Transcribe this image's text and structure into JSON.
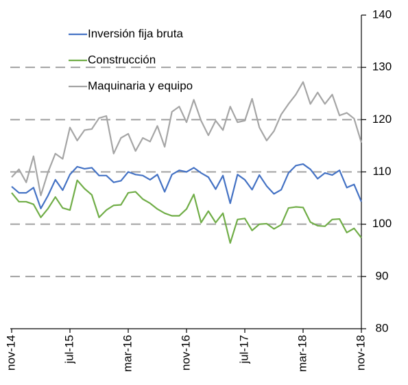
{
  "chart_data": {
    "type": "line",
    "categories": [
      "nov-14",
      null,
      null,
      null,
      null,
      null,
      null,
      null,
      "jul-15",
      null,
      null,
      null,
      null,
      null,
      null,
      null,
      "mar-16",
      null,
      null,
      null,
      null,
      null,
      null,
      null,
      "nov-16",
      null,
      null,
      null,
      null,
      null,
      null,
      null,
      "jul-17",
      null,
      null,
      null,
      null,
      null,
      null,
      null,
      "mar-18",
      null,
      null,
      null,
      null,
      null,
      null,
      null,
      "nov-18"
    ],
    "series": [
      {
        "name": "Inversión fija bruta",
        "color": "#4472c4",
        "values": [
          107.2,
          106,
          106,
          107,
          103,
          105.5,
          108.5,
          106.5,
          109.5,
          111,
          110.6,
          110.8,
          109.3,
          109.3,
          108,
          108.3,
          110,
          109.5,
          109.3,
          108.5,
          109.5,
          106.2,
          109.5,
          110.3,
          110,
          110.8,
          109.8,
          109,
          106.7,
          109.3,
          104,
          109.5,
          108.5,
          106.6,
          109.4,
          107.3,
          105.8,
          106.6,
          109.8,
          111.2,
          111.5,
          110.5,
          108.7,
          109.8,
          109.4,
          110.3,
          107,
          107.6,
          104.3
        ]
      },
      {
        "name": "Construcción",
        "color": "#70ad47",
        "values": [
          106,
          104.3,
          104.3,
          103.8,
          101.3,
          103,
          105.2,
          103.1,
          102.7,
          108.4,
          106.8,
          105.6,
          101.3,
          102.7,
          103.6,
          103.7,
          106,
          106.2,
          104.8,
          104,
          102.9,
          102.1,
          101.6,
          101.6,
          102.9,
          105.7,
          100.3,
          102.5,
          100.3,
          102.1,
          96.4,
          100.9,
          101.1,
          98.8,
          100,
          100.1,
          99.1,
          99.9,
          103.1,
          103.3,
          103.2,
          100.4,
          99.7,
          99.6,
          100.9,
          101,
          98.4,
          99.2,
          97.4
        ]
      },
      {
        "name": "Maquinaria y equipo",
        "color": "#a5a5a5",
        "values": [
          109,
          110.5,
          108,
          113,
          105.5,
          110,
          113.5,
          112.5,
          118.5,
          116,
          118,
          118.2,
          120.3,
          120.7,
          113.5,
          116.5,
          117.3,
          114,
          116.5,
          115.8,
          118.8,
          114.8,
          121.5,
          122.5,
          119.5,
          123.8,
          119.8,
          117,
          119.8,
          118,
          122.5,
          119.5,
          119.8,
          124,
          118.5,
          116,
          117.8,
          121,
          123,
          124.8,
          127.2,
          123,
          125.2,
          123,
          124.8,
          120.8,
          121.3,
          120.2,
          115.6
        ]
      }
    ],
    "ylim": [
      80,
      140
    ],
    "yticks": [
      80,
      90,
      100,
      110,
      120,
      130,
      140
    ],
    "grid": true
  }
}
